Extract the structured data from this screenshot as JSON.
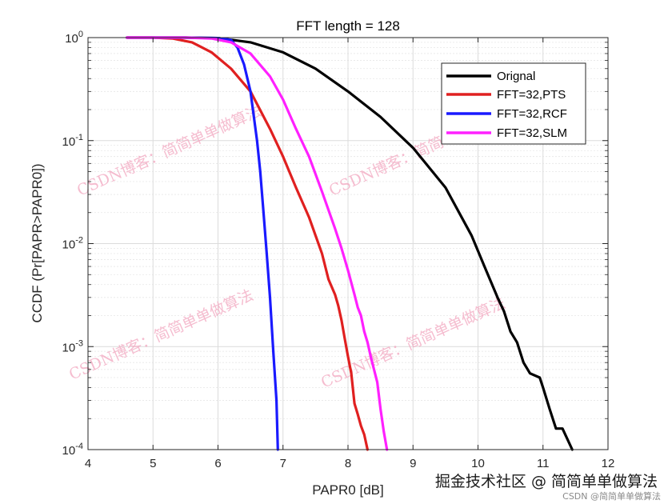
{
  "chart_data": {
    "type": "line",
    "title": "FFT length = 128",
    "xlabel": "PAPR0 [dB]",
    "ylabel": "CCDF (Pr[PAPR>PAPR0])",
    "xlim": [
      4,
      12
    ],
    "ylim": [
      0.0001,
      1
    ],
    "yscale": "log",
    "grid": true,
    "legend_position": "top-right",
    "x_ticks": [
      "4",
      "5",
      "6",
      "7",
      "8",
      "9",
      "10",
      "11",
      "12"
    ],
    "y_ticks": [
      {
        "value": 1,
        "base": "10",
        "exp": "0"
      },
      {
        "value": 0.1,
        "base": "10",
        "exp": "-1"
      },
      {
        "value": 0.01,
        "base": "10",
        "exp": "-2"
      },
      {
        "value": 0.001,
        "base": "10",
        "exp": "-3"
      },
      {
        "value": 0.0001,
        "base": "10",
        "exp": "-4"
      }
    ],
    "series": [
      {
        "name": "Orignal",
        "color": "#000000",
        "points": [
          [
            4.6,
            1
          ],
          [
            5.5,
            1
          ],
          [
            6.0,
            0.99
          ],
          [
            6.5,
            0.9
          ],
          [
            7.0,
            0.72
          ],
          [
            7.5,
            0.5
          ],
          [
            8.0,
            0.3
          ],
          [
            8.5,
            0.17
          ],
          [
            9.0,
            0.085
          ],
          [
            9.5,
            0.035
          ],
          [
            9.9,
            0.012
          ],
          [
            10.1,
            0.006
          ],
          [
            10.3,
            0.003
          ],
          [
            10.4,
            0.0022
          ],
          [
            10.5,
            0.0014
          ],
          [
            10.6,
            0.0011
          ],
          [
            10.7,
            0.0007
          ],
          [
            10.8,
            0.00055
          ],
          [
            10.95,
            0.0005
          ],
          [
            11.0,
            0.0004
          ],
          [
            11.1,
            0.00025
          ],
          [
            11.2,
            0.00016
          ],
          [
            11.3,
            0.00016
          ],
          [
            11.45,
            0.0001
          ]
        ]
      },
      {
        "name": "FFT=32,PTS",
        "color": "#e02020",
        "points": [
          [
            4.6,
            1
          ],
          [
            5.0,
            1
          ],
          [
            5.3,
            0.98
          ],
          [
            5.6,
            0.9
          ],
          [
            5.9,
            0.72
          ],
          [
            6.2,
            0.5
          ],
          [
            6.5,
            0.3
          ],
          [
            6.8,
            0.13
          ],
          [
            7.0,
            0.07
          ],
          [
            7.2,
            0.035
          ],
          [
            7.4,
            0.018
          ],
          [
            7.5,
            0.012
          ],
          [
            7.6,
            0.008
          ],
          [
            7.7,
            0.0045
          ],
          [
            7.8,
            0.0032
          ],
          [
            7.85,
            0.0025
          ],
          [
            7.9,
            0.0018
          ],
          [
            7.95,
            0.0012
          ],
          [
            8.0,
            0.0008
          ],
          [
            8.05,
            0.00055
          ],
          [
            8.1,
            0.00028
          ],
          [
            8.15,
            0.00022
          ],
          [
            8.2,
            0.00017
          ],
          [
            8.25,
            0.00014
          ],
          [
            8.3,
            0.0001
          ]
        ]
      },
      {
        "name": "FFT=32,RCF",
        "color": "#1a1aff",
        "points": [
          [
            4.6,
            1
          ],
          [
            5.5,
            1
          ],
          [
            6.0,
            0.99
          ],
          [
            6.2,
            0.95
          ],
          [
            6.3,
            0.8
          ],
          [
            6.4,
            0.55
          ],
          [
            6.5,
            0.3
          ],
          [
            6.6,
            0.1
          ],
          [
            6.65,
            0.05
          ],
          [
            6.7,
            0.02
          ],
          [
            6.75,
            0.008
          ],
          [
            6.8,
            0.003
          ],
          [
            6.85,
            0.0009
          ],
          [
            6.9,
            0.0003
          ],
          [
            6.92,
            0.0001
          ]
        ]
      },
      {
        "name": "FFT=32,SLM",
        "color": "#ff20ff",
        "points": [
          [
            4.6,
            1
          ],
          [
            5.5,
            1
          ],
          [
            5.9,
            0.98
          ],
          [
            6.2,
            0.9
          ],
          [
            6.5,
            0.7
          ],
          [
            6.8,
            0.42
          ],
          [
            7.0,
            0.25
          ],
          [
            7.2,
            0.13
          ],
          [
            7.4,
            0.07
          ],
          [
            7.6,
            0.032
          ],
          [
            7.8,
            0.014
          ],
          [
            7.9,
            0.009
          ],
          [
            8.0,
            0.0055
          ],
          [
            8.1,
            0.0032
          ],
          [
            8.15,
            0.0024
          ],
          [
            8.2,
            0.002
          ],
          [
            8.25,
            0.0014
          ],
          [
            8.3,
            0.0011
          ],
          [
            8.35,
            0.0008
          ],
          [
            8.4,
            0.0006
          ],
          [
            8.45,
            0.00045
          ],
          [
            8.5,
            0.00025
          ],
          [
            8.55,
            0.00015
          ],
          [
            8.6,
            0.0001
          ]
        ]
      }
    ]
  },
  "watermarks": [
    "CSDN博客：简简单单做算法",
    "CSDN博客：简简单单做算法",
    "CSDN博客：简简单单做算法",
    "CSDN博客：简简单单做算法"
  ],
  "footer": {
    "source_text": "掘金技术社区 @ 简简单单做算法",
    "small_text": "CSDN @简简单单做算法"
  }
}
